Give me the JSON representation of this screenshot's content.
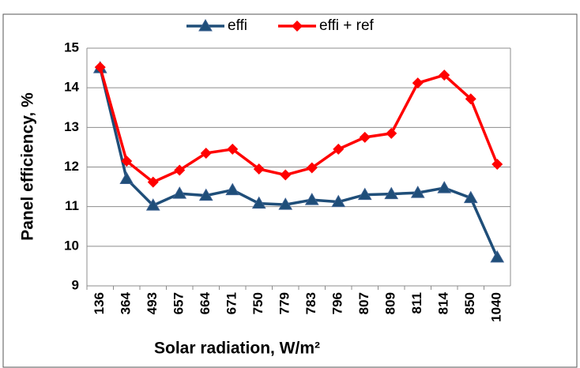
{
  "chart_data": {
    "type": "line",
    "categories": [
      "136",
      "364",
      "493",
      "657",
      "664",
      "671",
      "750",
      "779",
      "783",
      "796",
      "807",
      "809",
      "811",
      "814",
      "850",
      "1040"
    ],
    "series": [
      {
        "name": "effi",
        "color": "#1f4e79",
        "marker": "triangle",
        "values": [
          14.5,
          11.7,
          11.03,
          11.33,
          11.28,
          11.42,
          11.08,
          11.05,
          11.17,
          11.12,
          11.3,
          11.32,
          11.35,
          11.47,
          11.22,
          9.72
        ]
      },
      {
        "name": "effi + ref",
        "color": "#ff0000",
        "marker": "diamond",
        "values": [
          14.52,
          12.15,
          11.62,
          11.92,
          12.35,
          12.45,
          11.95,
          11.8,
          11.98,
          12.45,
          12.75,
          12.85,
          14.12,
          14.32,
          13.72,
          12.07
        ]
      }
    ],
    "xlabel": "Solar radiation, W/m²",
    "ylabel": "Panel efficiency, %",
    "ylim": [
      9,
      15
    ],
    "yticks": [
      9,
      10,
      11,
      12,
      13,
      14,
      15
    ],
    "grid": true,
    "legend": "top"
  }
}
